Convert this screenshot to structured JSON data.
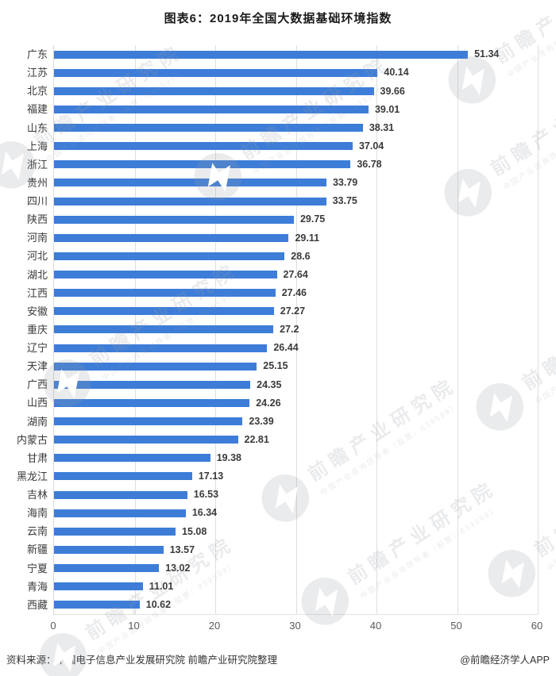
{
  "title": "图表6：2019年全国大数据基础环境指数",
  "footer": {
    "source": "资料来源：中国电子信息产业发展研究院 前瞻产业研究院整理",
    "credit": "@前瞻经济学人APP"
  },
  "watermark": {
    "brand": "前瞻产业研究院",
    "sub": "中国产业咨询领导者（股票：839599）"
  },
  "colors": {
    "bar": "#3d7dd8",
    "gridline": "#dedede",
    "tick_label": "#595959",
    "label_text": "#3a3a3a"
  },
  "chart_data": {
    "type": "bar",
    "orientation": "horizontal",
    "title": "图表6：2019年全国大数据基础环境指数",
    "xlabel": "",
    "ylabel": "",
    "xlim": [
      0,
      60
    ],
    "xticks": [
      0,
      10,
      20,
      30,
      40,
      50,
      60
    ],
    "grid": "vertical",
    "legend": "none",
    "categories": [
      "广东",
      "江苏",
      "北京",
      "福建",
      "山东",
      "上海",
      "浙江",
      "贵州",
      "四川",
      "陕西",
      "河南",
      "河北",
      "湖北",
      "江西",
      "安徽",
      "重庆",
      "辽宁",
      "天津",
      "广西",
      "山西",
      "湖南",
      "内蒙古",
      "甘肃",
      "黑龙江",
      "吉林",
      "海南",
      "云南",
      "新疆",
      "宁夏",
      "青海",
      "西藏"
    ],
    "values": [
      51.34,
      40.14,
      39.66,
      39.01,
      38.31,
      37.04,
      36.78,
      33.79,
      33.75,
      29.75,
      29.11,
      28.6,
      27.64,
      27.46,
      27.27,
      27.2,
      26.44,
      25.15,
      24.35,
      24.26,
      23.39,
      22.81,
      19.38,
      17.13,
      16.53,
      16.34,
      15.08,
      13.57,
      13.02,
      11.01,
      10.62
    ]
  }
}
